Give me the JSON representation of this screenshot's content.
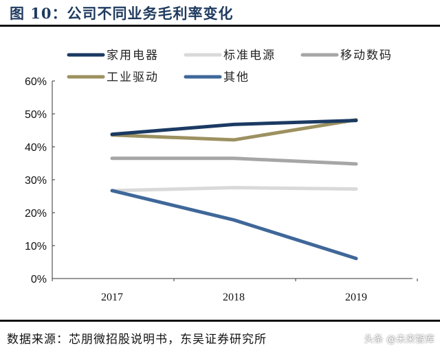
{
  "title": "图 10：公司不同业务毛利率变化",
  "source": "数据来源：芯朋微招股说明书，东吴证券研究所",
  "watermark": "头条 @未来智库",
  "chart_data": {
    "type": "line",
    "categories": [
      "2017",
      "2018",
      "2019"
    ],
    "ylim": [
      0,
      60
    ],
    "yticks": [
      "0%",
      "10%",
      "20%",
      "30%",
      "40%",
      "50%",
      "60%"
    ],
    "legend": "top",
    "grid": false,
    "series": [
      {
        "name": "家用电器",
        "color": "#1b3a63",
        "values": [
          43.8,
          46.8,
          48.0
        ]
      },
      {
        "name": "标准电源",
        "color": "#d9d9d9",
        "values": [
          26.7,
          27.6,
          27.2
        ]
      },
      {
        "name": "移动数码",
        "color": "#a6a6a6",
        "values": [
          36.5,
          36.5,
          34.8
        ]
      },
      {
        "name": "工业驱动",
        "color": "#9c9160",
        "values": [
          43.6,
          42.1,
          48.2
        ]
      },
      {
        "name": "其他",
        "color": "#3f6799",
        "values": [
          26.7,
          17.8,
          6.1
        ]
      }
    ]
  }
}
